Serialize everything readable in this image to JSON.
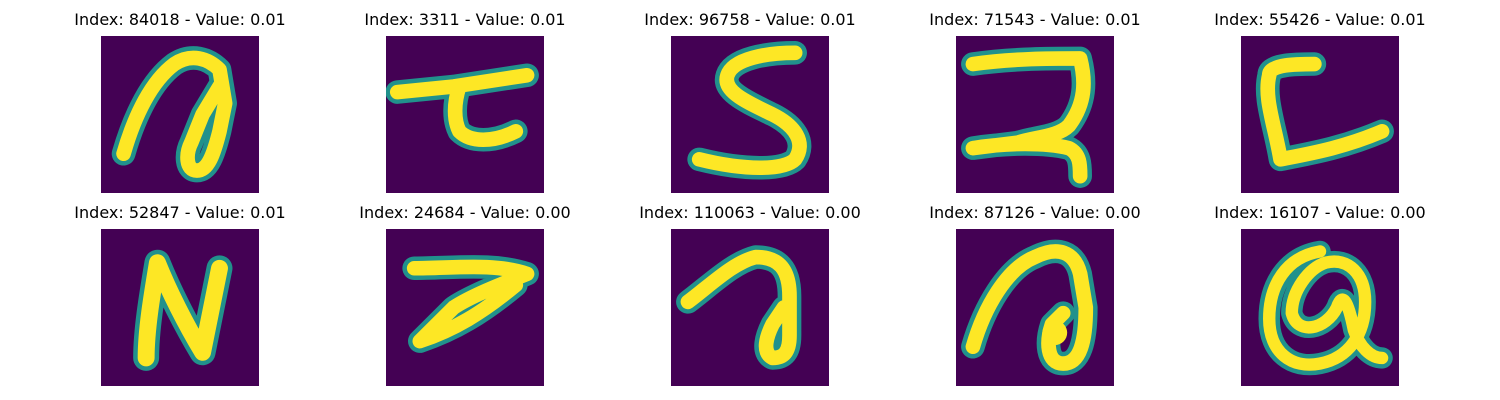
{
  "figure": {
    "panels": [
      {
        "title": "Index: 84018 - Value: 0.01",
        "image": "handwritten glyph a-like loop"
      },
      {
        "title": "Index: 3311 - Value: 0.01",
        "image": "handwritten glyph tau-like"
      },
      {
        "title": "Index: 96758 - Value: 0.01",
        "image": "handwritten glyph S"
      },
      {
        "title": "Index: 71543 - Value: 0.01",
        "image": "handwritten glyph backward-S-like"
      },
      {
        "title": "Index: 55426 - Value: 0.01",
        "image": "handwritten glyph L-like"
      },
      {
        "title": "Index: 52847 - Value: 0.01",
        "image": "handwritten glyph N"
      },
      {
        "title": "Index: 24684 - Value: 0.00",
        "image": "handwritten glyph 7/Z-like"
      },
      {
        "title": "Index: 110063 - Value: 0.00",
        "image": "handwritten glyph a-like loop"
      },
      {
        "title": "Index: 87126 - Value: 0.00",
        "image": "handwritten glyph a-like loop"
      },
      {
        "title": "Index: 16107 - Value: 0.00",
        "image": "handwritten glyph @-like"
      }
    ],
    "colors": {
      "background": "#440154",
      "stroke_main": "#fde725",
      "stroke_edge": "#21918c",
      "stroke_mid": "#5ec962"
    }
  }
}
